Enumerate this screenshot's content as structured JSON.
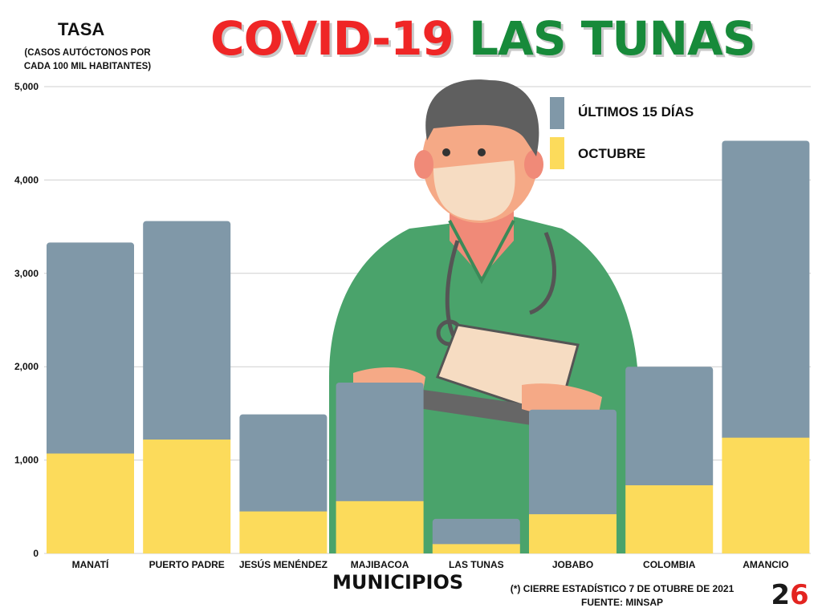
{
  "header": {
    "title_part1": "COVID-19",
    "title_part2": "LAS TUNAS",
    "ylabel_title": "TASA",
    "ylabel_subtitle": "(CASOS AUTÓCTONOS POR CADA 100 MIL HABITANTES)",
    "xlabel": "MUNICIPIOS"
  },
  "footnote": {
    "line1": "(*) CIERRE ESTADÍSTICO 7 DE OTUBRE DE 2021",
    "line2": "FUENTE: MINSAP"
  },
  "logo": {
    "text": "26",
    "color": "#e32420"
  },
  "colors": {
    "series_top": "#8098a8",
    "series_bottom": "#fcdb5b",
    "title_red": "#ef2626",
    "title_green": "#178a3a",
    "illustration_green": "#4aa36b"
  },
  "chart_data": {
    "type": "bar",
    "stacked": true,
    "categories": [
      "MANATÍ",
      "PUERTO PADRE",
      "JESÚS MENÉNDEZ",
      "MAJIBACOA",
      "LAS TUNAS",
      "JOBABO",
      "COLOMBIA",
      "AMANCIO"
    ],
    "series": [
      {
        "name": "OCTUBRE",
        "values": [
          1070,
          1220,
          450,
          560,
          100,
          420,
          730,
          1240
        ]
      },
      {
        "name": "ÚLTIMOS 15 DÍAS",
        "values": [
          2260,
          2340,
          1040,
          1270,
          270,
          1120,
          1270,
          3180
        ]
      }
    ],
    "ylim": [
      0,
      5000
    ],
    "yticks": [
      0,
      1000,
      2000,
      3000,
      4000,
      5000
    ],
    "ytick_labels": [
      "0",
      "1,000",
      "2,000",
      "3,000",
      "4,000",
      "5,000"
    ],
    "grid": true,
    "legend_position": "top-right"
  }
}
